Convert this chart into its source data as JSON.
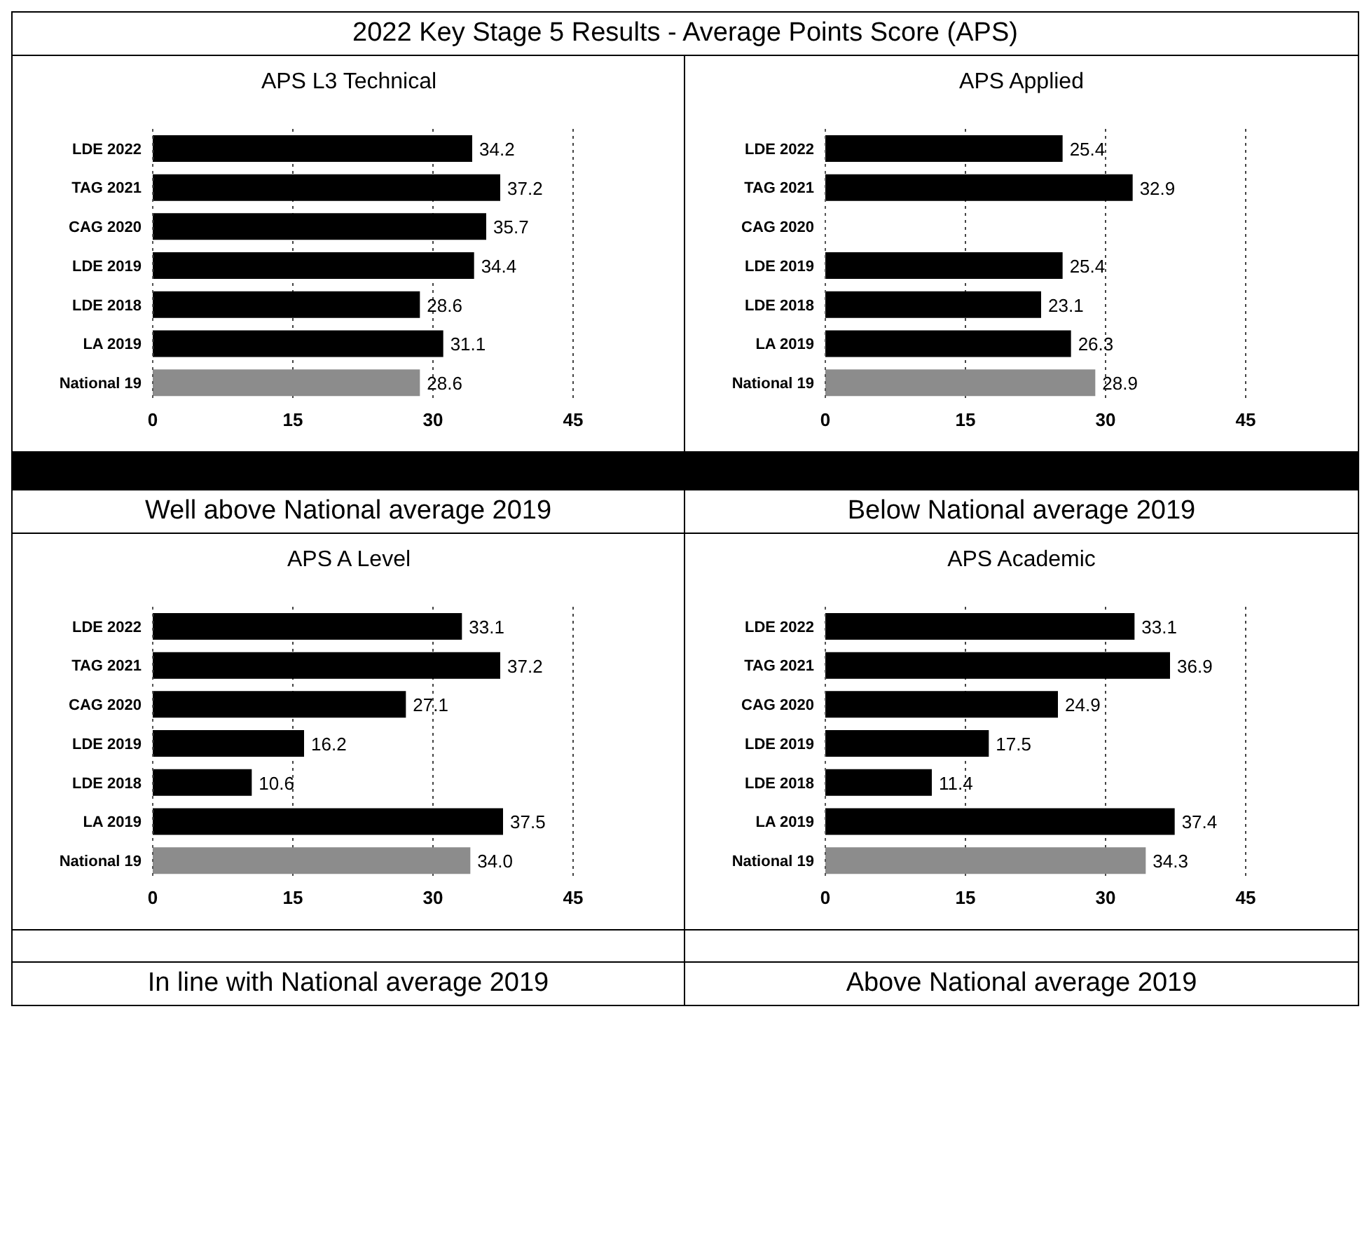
{
  "chart_data": [
    {
      "type": "other",
      "title": "2022 Key Stage 5 Results - Average Points Score (APS)"
    },
    {
      "type": "bar",
      "orientation": "horizontal",
      "title": "APS L3 Technical",
      "categories": [
        "LDE 2022",
        "TAG 2021",
        "CAG 2020",
        "LDE 2019",
        "LDE 2018",
        "LA 2019",
        "National 19"
      ],
      "values": [
        34.2,
        37.2,
        35.7,
        34.4,
        28.6,
        31.1,
        28.6
      ],
      "colors": [
        "#000000",
        "#000000",
        "#000000",
        "#000000",
        "#000000",
        "#000000",
        "#8c8c8c"
      ],
      "xlim": [
        0,
        45
      ],
      "xticks": [
        0,
        15,
        30,
        45
      ],
      "grid": "x",
      "data_labels": true,
      "annotations": [
        "Well above National average 2019"
      ]
    },
    {
      "type": "bar",
      "orientation": "horizontal",
      "title": "APS Applied",
      "categories": [
        "LDE 2022",
        "TAG 2021",
        "CAG 2020",
        "LDE 2019",
        "LDE 2018",
        "LA 2019",
        "National 19"
      ],
      "values": [
        25.4,
        32.9,
        null,
        25.4,
        23.1,
        26.3,
        28.9
      ],
      "colors": [
        "#000000",
        "#000000",
        "#000000",
        "#000000",
        "#000000",
        "#000000",
        "#8c8c8c"
      ],
      "xlim": [
        0,
        45
      ],
      "xticks": [
        0,
        15,
        30,
        45
      ],
      "grid": "x",
      "data_labels": true,
      "annotations": [
        "Below National average 2019"
      ]
    },
    {
      "type": "bar",
      "orientation": "horizontal",
      "title": "APS A Level",
      "categories": [
        "LDE 2022",
        "TAG 2021",
        "CAG 2020",
        "LDE 2019",
        "LDE 2018",
        "LA 2019",
        "National 19"
      ],
      "values": [
        33.1,
        37.2,
        27.1,
        16.2,
        10.6,
        37.5,
        34.0
      ],
      "colors": [
        "#000000",
        "#000000",
        "#000000",
        "#000000",
        "#000000",
        "#000000",
        "#8c8c8c"
      ],
      "xlim": [
        0,
        45
      ],
      "xticks": [
        0,
        15,
        30,
        45
      ],
      "grid": "x",
      "data_labels": true,
      "value_labels": [
        "33.1",
        "37.2",
        "27.1",
        "16.2",
        "10.6",
        "37.5",
        "34.0"
      ],
      "annotations": [
        "In line with National average 2019"
      ]
    },
    {
      "type": "bar",
      "orientation": "horizontal",
      "title": "APS Academic",
      "categories": [
        "LDE 2022",
        "TAG 2021",
        "CAG 2020",
        "LDE 2019",
        "LDE 2018",
        "LA 2019",
        "National 19"
      ],
      "values": [
        33.1,
        36.9,
        24.9,
        17.5,
        11.4,
        37.4,
        34.3
      ],
      "colors": [
        "#000000",
        "#000000",
        "#000000",
        "#000000",
        "#000000",
        "#000000",
        "#8c8c8c"
      ],
      "xlim": [
        0,
        45
      ],
      "xticks": [
        0,
        15,
        30,
        45
      ],
      "grid": "x",
      "data_labels": true,
      "annotations": [
        "Above National average 2019"
      ]
    }
  ]
}
